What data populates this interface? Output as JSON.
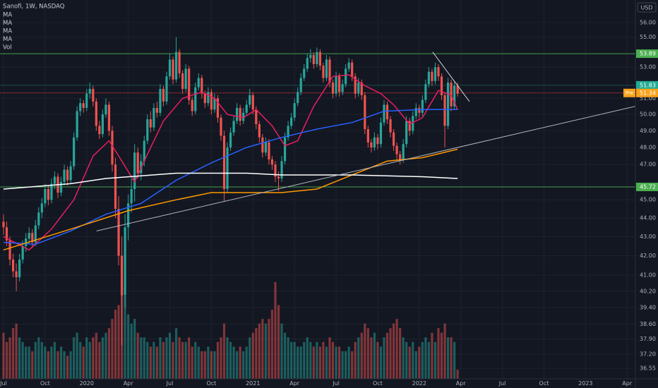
{
  "chart_data": {
    "type": "candlestick",
    "title": "Sanofi, 1W, NASDAQ",
    "currency": "USD",
    "log_scale": true,
    "grid": true,
    "ylim": [
      36.08,
      57.58
    ],
    "yticks": [
      {
        "value": 56,
        "label": "56.00"
      },
      {
        "value": 55,
        "label": "55.00"
      },
      {
        "value": 53,
        "label": "53.00"
      },
      {
        "value": 51,
        "label": "51.00"
      },
      {
        "value": 50,
        "label": "50.00"
      },
      {
        "value": 49,
        "label": "49.00"
      },
      {
        "value": 48,
        "label": "48.00"
      },
      {
        "value": 47,
        "label": "47.00"
      },
      {
        "value": 45,
        "label": "45.00"
      },
      {
        "value": 44,
        "label": "44.00"
      },
      {
        "value": 43,
        "label": "43.00"
      },
      {
        "value": 42,
        "label": "42.00"
      },
      {
        "value": 41,
        "label": "41.00"
      },
      {
        "value": 40.2,
        "label": "40.20"
      },
      {
        "value": 39.4,
        "label": "39.40"
      },
      {
        "value": 38.6,
        "label": "38.60"
      },
      {
        "value": 37.9,
        "label": "37.90"
      },
      {
        "value": 37.2,
        "label": "37.20"
      },
      {
        "value": 36.55,
        "label": "36.55"
      }
    ],
    "xlim": [
      -1.1,
      197.6
    ],
    "xticks": [
      {
        "value": 0,
        "label": "Jul"
      },
      {
        "value": 13,
        "label": "Oct"
      },
      {
        "value": 26,
        "label": "2020"
      },
      {
        "value": 39,
        "label": "Apr"
      },
      {
        "value": 52,
        "label": "Jul"
      },
      {
        "value": 65,
        "label": "Oct"
      },
      {
        "value": 78,
        "label": "2021"
      },
      {
        "value": 91,
        "label": "Apr"
      },
      {
        "value": 104,
        "label": "Jul"
      },
      {
        "value": 117,
        "label": "Oct"
      },
      {
        "value": 130,
        "label": "2022"
      },
      {
        "value": 143,
        "label": "Apr"
      },
      {
        "value": 156,
        "label": "Jul"
      },
      {
        "value": 169,
        "label": "Oct"
      },
      {
        "value": 182,
        "label": "2023"
      },
      {
        "value": 195,
        "label": "Apr"
      }
    ],
    "up_color": "#26a69a",
    "down_color": "#ef5350",
    "ohlc": [
      [
        43.8,
        44.2,
        43.1,
        43.5
      ],
      [
        43.5,
        43.8,
        42.5,
        42.8
      ],
      [
        42.8,
        43.0,
        41.5,
        41.8
      ],
      [
        41.8,
        42.1,
        40.9,
        41.2
      ],
      [
        41.2,
        41.6,
        40.2,
        40.9
      ],
      [
        40.9,
        42.1,
        40.7,
        41.8
      ],
      [
        41.8,
        42.8,
        41.6,
        42.5
      ],
      [
        42.5,
        43.2,
        42.2,
        42.9
      ],
      [
        42.9,
        43.5,
        42.6,
        43.2
      ],
      [
        43.2,
        43.4,
        42.4,
        42.7
      ],
      [
        42.7,
        43.9,
        42.5,
        43.6
      ],
      [
        43.6,
        44.6,
        43.4,
        44.3
      ],
      [
        44.3,
        45.1,
        44.0,
        44.8
      ],
      [
        44.8,
        45.9,
        44.6,
        45.6
      ],
      [
        45.6,
        45.8,
        44.7,
        45.0
      ],
      [
        45.0,
        46.2,
        44.8,
        45.9
      ],
      [
        45.9,
        46.6,
        45.6,
        46.3
      ],
      [
        46.3,
        46.5,
        45.1,
        45.4
      ],
      [
        45.4,
        46.3,
        45.2,
        46.0
      ],
      [
        46.0,
        47.0,
        45.8,
        46.7
      ],
      [
        46.7,
        46.9,
        45.8,
        46.1
      ],
      [
        46.1,
        47.2,
        45.9,
        46.9
      ],
      [
        46.9,
        48.9,
        46.7,
        48.6
      ],
      [
        48.6,
        50.5,
        48.4,
        50.2
      ],
      [
        50.2,
        51.0,
        49.9,
        50.7
      ],
      [
        50.7,
        50.9,
        50.1,
        50.4
      ],
      [
        50.4,
        51.6,
        50.2,
        51.3
      ],
      [
        51.3,
        52.0,
        51.0,
        51.6
      ],
      [
        51.6,
        51.8,
        50.5,
        50.8
      ],
      [
        50.8,
        51.0,
        49.0,
        49.3
      ],
      [
        49.3,
        49.6,
        48.5,
        48.8
      ],
      [
        48.8,
        50.3,
        48.6,
        50.0
      ],
      [
        50.0,
        51.0,
        49.8,
        50.6
      ],
      [
        50.6,
        50.8,
        48.7,
        49.0
      ],
      [
        49.0,
        49.3,
        46.6,
        47.0
      ],
      [
        47.0,
        47.4,
        44.0,
        44.5
      ],
      [
        44.5,
        45.2,
        41.5,
        42.0
      ],
      [
        42.0,
        43.0,
        37.6,
        40.0
      ],
      [
        40.0,
        44.2,
        39.4,
        43.5
      ],
      [
        43.5,
        45.3,
        42.8,
        44.8
      ],
      [
        44.8,
        46.2,
        44.3,
        45.6
      ],
      [
        45.6,
        48.2,
        44.9,
        47.7
      ],
      [
        47.7,
        48.0,
        46.2,
        46.5
      ],
      [
        46.5,
        47.6,
        46.1,
        47.2
      ],
      [
        47.2,
        48.7,
        46.9,
        48.4
      ],
      [
        48.4,
        50.0,
        48.2,
        49.7
      ],
      [
        49.7,
        50.2,
        48.9,
        49.2
      ],
      [
        49.2,
        50.7,
        49.0,
        50.4
      ],
      [
        50.4,
        50.8,
        49.8,
        50.1
      ],
      [
        50.1,
        51.9,
        49.9,
        51.6
      ],
      [
        51.6,
        51.8,
        50.5,
        50.8
      ],
      [
        50.8,
        52.7,
        50.6,
        52.4
      ],
      [
        52.4,
        53.9,
        52.2,
        53.5
      ],
      [
        53.5,
        53.7,
        51.9,
        52.2
      ],
      [
        52.2,
        55.0,
        52.0,
        54.0
      ],
      [
        54.0,
        54.2,
        52.3,
        52.6
      ],
      [
        52.6,
        52.8,
        51.3,
        51.6
      ],
      [
        51.6,
        53.2,
        51.4,
        52.9
      ],
      [
        52.9,
        53.1,
        50.6,
        50.9
      ],
      [
        50.9,
        51.1,
        49.9,
        50.2
      ],
      [
        50.2,
        52.0,
        50.0,
        51.7
      ],
      [
        51.7,
        52.6,
        51.5,
        52.3
      ],
      [
        52.3,
        52.5,
        51.0,
        51.3
      ],
      [
        51.3,
        51.5,
        50.4,
        50.7
      ],
      [
        50.7,
        51.7,
        50.5,
        51.4
      ],
      [
        51.4,
        51.6,
        50.0,
        50.3
      ],
      [
        50.3,
        51.3,
        50.1,
        51.0
      ],
      [
        51.0,
        51.2,
        49.5,
        49.8
      ],
      [
        49.8,
        50.0,
        48.4,
        48.7
      ],
      [
        48.7,
        49.0,
        44.9,
        45.6
      ],
      [
        45.6,
        48.3,
        45.4,
        48.0
      ],
      [
        48.0,
        49.2,
        47.8,
        48.9
      ],
      [
        48.9,
        49.9,
        48.7,
        49.6
      ],
      [
        49.6,
        50.7,
        49.4,
        50.4
      ],
      [
        50.4,
        50.6,
        49.3,
        49.6
      ],
      [
        49.6,
        50.4,
        49.4,
        50.1
      ],
      [
        50.1,
        50.9,
        49.9,
        50.6
      ],
      [
        50.6,
        51.6,
        50.4,
        51.2
      ],
      [
        51.2,
        51.4,
        50.0,
        50.3
      ],
      [
        50.3,
        50.5,
        49.1,
        49.4
      ],
      [
        49.4,
        49.6,
        48.3,
        48.6
      ],
      [
        48.6,
        48.8,
        47.4,
        47.7
      ],
      [
        47.7,
        48.6,
        47.5,
        48.3
      ],
      [
        48.3,
        48.5,
        47.0,
        47.3
      ],
      [
        47.3,
        47.5,
        46.7,
        47.0
      ],
      [
        47.0,
        47.2,
        46.0,
        46.3
      ],
      [
        46.3,
        46.6,
        45.5,
        46.2
      ],
      [
        46.2,
        47.5,
        46.0,
        47.2
      ],
      [
        47.2,
        48.9,
        47.0,
        48.6
      ],
      [
        48.6,
        49.6,
        48.4,
        49.3
      ],
      [
        49.3,
        50.1,
        49.1,
        49.8
      ],
      [
        49.8,
        51.0,
        49.6,
        50.7
      ],
      [
        50.7,
        51.7,
        50.5,
        51.4
      ],
      [
        51.4,
        52.6,
        51.2,
        52.3
      ],
      [
        52.3,
        53.2,
        52.1,
        52.9
      ],
      [
        52.9,
        53.9,
        52.7,
        53.6
      ],
      [
        53.6,
        54.2,
        53.3,
        53.8
      ],
      [
        53.8,
        54.0,
        52.9,
        53.2
      ],
      [
        53.2,
        54.3,
        53.0,
        54.0
      ],
      [
        54.0,
        54.2,
        52.8,
        53.1
      ],
      [
        53.1,
        53.3,
        52.0,
        52.3
      ],
      [
        52.3,
        53.8,
        52.1,
        53.5
      ],
      [
        53.5,
        53.7,
        51.7,
        52.0
      ],
      [
        52.0,
        52.2,
        51.0,
        51.3
      ],
      [
        51.3,
        52.7,
        51.1,
        52.4
      ],
      [
        52.4,
        52.6,
        51.1,
        51.4
      ],
      [
        51.4,
        52.2,
        51.2,
        51.9
      ],
      [
        51.9,
        53.2,
        51.7,
        52.9
      ],
      [
        52.9,
        53.6,
        52.7,
        53.3
      ],
      [
        53.3,
        53.5,
        52.1,
        52.4
      ],
      [
        52.4,
        52.6,
        51.0,
        51.3
      ],
      [
        51.3,
        52.3,
        51.1,
        52.0
      ],
      [
        52.0,
        52.2,
        50.9,
        51.2
      ],
      [
        51.2,
        51.4,
        48.8,
        49.1
      ],
      [
        49.1,
        49.3,
        48.0,
        48.3
      ],
      [
        48.3,
        48.5,
        47.7,
        48.0
      ],
      [
        48.0,
        48.9,
        47.8,
        48.6
      ],
      [
        48.6,
        48.8,
        47.9,
        48.2
      ],
      [
        48.2,
        49.8,
        48.0,
        49.5
      ],
      [
        49.5,
        50.9,
        49.3,
        50.6
      ],
      [
        50.6,
        50.8,
        49.4,
        49.7
      ],
      [
        49.7,
        49.9,
        48.6,
        48.9
      ],
      [
        48.9,
        49.1,
        47.8,
        48.1
      ],
      [
        48.1,
        48.3,
        47.3,
        47.6
      ],
      [
        47.6,
        47.8,
        47.0,
        47.3
      ],
      [
        47.3,
        48.5,
        47.1,
        48.2
      ],
      [
        48.2,
        49.9,
        48.0,
        49.6
      ],
      [
        49.6,
        49.8,
        48.7,
        49.0
      ],
      [
        49.0,
        50.2,
        48.8,
        49.9
      ],
      [
        49.9,
        50.7,
        49.7,
        50.4
      ],
      [
        50.4,
        50.6,
        49.8,
        50.1
      ],
      [
        50.1,
        51.2,
        49.9,
        50.9
      ],
      [
        50.9,
        52.2,
        50.7,
        51.9
      ],
      [
        51.9,
        53.0,
        51.7,
        52.7
      ],
      [
        52.7,
        52.9,
        51.8,
        52.1
      ],
      [
        52.1,
        53.3,
        51.9,
        53.0
      ],
      [
        53.0,
        53.2,
        52.1,
        52.4
      ],
      [
        52.4,
        52.6,
        50.9,
        51.2
      ],
      [
        51.2,
        51.4,
        48.0,
        49.3
      ],
      [
        49.3,
        52.3,
        49.1,
        52.0
      ],
      [
        52.0,
        52.2,
        50.2,
        50.5
      ],
      [
        50.5,
        52.1,
        50.3,
        51.8
      ],
      [
        51.8,
        52.0,
        51.1,
        51.3
      ]
    ],
    "volume": {
      "name": "Vol",
      "lim": [
        0,
        30
      ],
      "values": [
        10,
        8,
        9,
        11,
        12,
        9,
        8,
        7,
        7,
        6,
        8,
        9,
        8,
        7,
        6,
        7,
        8,
        6,
        7,
        6,
        5,
        6,
        9,
        10,
        8,
        7,
        9,
        8,
        9,
        10,
        8,
        9,
        10,
        11,
        13,
        15,
        16,
        20,
        18,
        14,
        12,
        13,
        10,
        9,
        9,
        8,
        7,
        8,
        7,
        9,
        8,
        9,
        10,
        8,
        11,
        9,
        8,
        8,
        9,
        7,
        8,
        7,
        6,
        6,
        7,
        6,
        6,
        8,
        9,
        12,
        9,
        8,
        7,
        6,
        7,
        6,
        7,
        9,
        10,
        11,
        12,
        13,
        12,
        13,
        15,
        21,
        16,
        12,
        10,
        9,
        8,
        8,
        7,
        7,
        8,
        9,
        8,
        7,
        8,
        7,
        8,
        7,
        9,
        8,
        7,
        7,
        6,
        6,
        7,
        6,
        8,
        9,
        10,
        12,
        11,
        9,
        10,
        8,
        7,
        9,
        10,
        11,
        12,
        13,
        11,
        9,
        8,
        7,
        8,
        6,
        7,
        8,
        9,
        8,
        10,
        8,
        11,
        10,
        12,
        9,
        9,
        8,
        2
      ]
    },
    "moving_averages": [
      {
        "name": "MA",
        "color": "#e91e63",
        "x": [
          0,
          8,
          15,
          22,
          28,
          33,
          37,
          41,
          45,
          50,
          56,
          62,
          66,
          70,
          75,
          79,
          84,
          88,
          92,
          97,
          103,
          108,
          113,
          118,
          122,
          127,
          131,
          136,
          140,
          142
        ],
        "values": [
          43.0,
          42.3,
          43.4,
          45.0,
          47.5,
          48.4,
          47.2,
          46.0,
          47.6,
          49.6,
          51.0,
          51.4,
          51.0,
          50.0,
          49.8,
          50.3,
          49.3,
          48.1,
          48.4,
          50.5,
          52.4,
          52.5,
          51.8,
          51.3,
          50.6,
          49.4,
          49.8,
          51.5,
          51.2,
          50.3
        ]
      },
      {
        "name": "MA",
        "color": "#2962ff",
        "x": [
          0,
          10,
          21,
          32,
          43,
          54,
          65,
          76,
          87,
          98,
          109,
          119,
          131,
          142
        ],
        "values": [
          42.7,
          42.6,
          43.3,
          44.2,
          44.8,
          46.1,
          47.1,
          48.0,
          48.6,
          49.1,
          49.5,
          50.2,
          50.3,
          50.3
        ]
      },
      {
        "name": "MA",
        "color": "#ff9800",
        "x": [
          0,
          21,
          39,
          54,
          65,
          87,
          98,
          109,
          120,
          131,
          142
        ],
        "values": [
          42.3,
          43.4,
          44.4,
          45.0,
          45.4,
          45.4,
          45.6,
          46.4,
          47.2,
          47.4,
          47.9
        ]
      },
      {
        "name": "MA",
        "color": "#ffffff",
        "x": [
          0,
          21,
          32,
          54,
          76,
          87,
          109,
          131,
          142
        ],
        "values": [
          45.6,
          45.9,
          46.2,
          46.5,
          46.5,
          46.4,
          46.4,
          46.3,
          46.2
        ]
      }
    ],
    "levels": [
      {
        "value": 53.89,
        "color": "#4caf50"
      },
      {
        "value": 51.83,
        "color": "#22ab94"
      },
      {
        "value": 45.72,
        "color": "#4caf50"
      }
    ],
    "price_line": {
      "tag": "Pre",
      "value": 51.34,
      "color": "#f7a21b",
      "line_color": "#f23645"
    },
    "trend_lines": [
      {
        "color": "#b2b5be",
        "x": [
          29.1,
          197.6
        ],
        "values": [
          43.3,
          50.5
        ]
      },
      {
        "color": "#d1d4dc",
        "x": [
          134.2,
          145.7
        ],
        "values": [
          54.0,
          50.8
        ]
      }
    ]
  }
}
